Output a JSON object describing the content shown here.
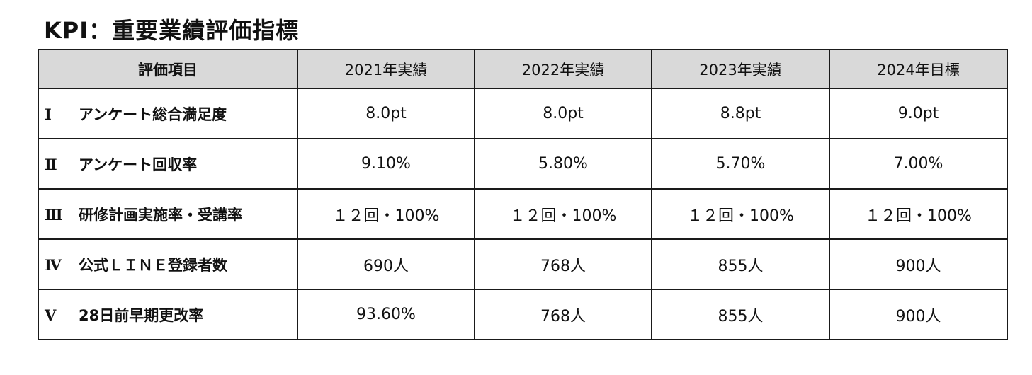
{
  "title": "KPI：重要業績評価指標",
  "table": {
    "headers": {
      "item": "評価項目",
      "cols": [
        "2021年実績",
        "2022年実績",
        "2023年実績",
        "2024年目標"
      ]
    },
    "rows": [
      {
        "num": "Ⅰ",
        "label": "アンケート総合満足度",
        "values": [
          "8.0pt",
          "8.0pt",
          "8.8pt",
          "9.0pt"
        ]
      },
      {
        "num": "Ⅱ",
        "label": "アンケート回収率",
        "values": [
          "9.10%",
          "5.80%",
          "5.70%",
          "7.00%"
        ]
      },
      {
        "num": "Ⅲ",
        "label": "研修計画実施率・受講率",
        "values": [
          "１２回・100%",
          "１２回・100%",
          "１２回・100%",
          "１２回・100%"
        ]
      },
      {
        "num": "Ⅳ",
        "label": "公式ＬＩＮＥ登録者数",
        "values": [
          "690人",
          "768人",
          "855人",
          "900人"
        ]
      },
      {
        "num": "Ⅴ",
        "label": "28日前早期更改率",
        "values": [
          "93.60%",
          "768人",
          "855人",
          "900人"
        ]
      }
    ]
  }
}
